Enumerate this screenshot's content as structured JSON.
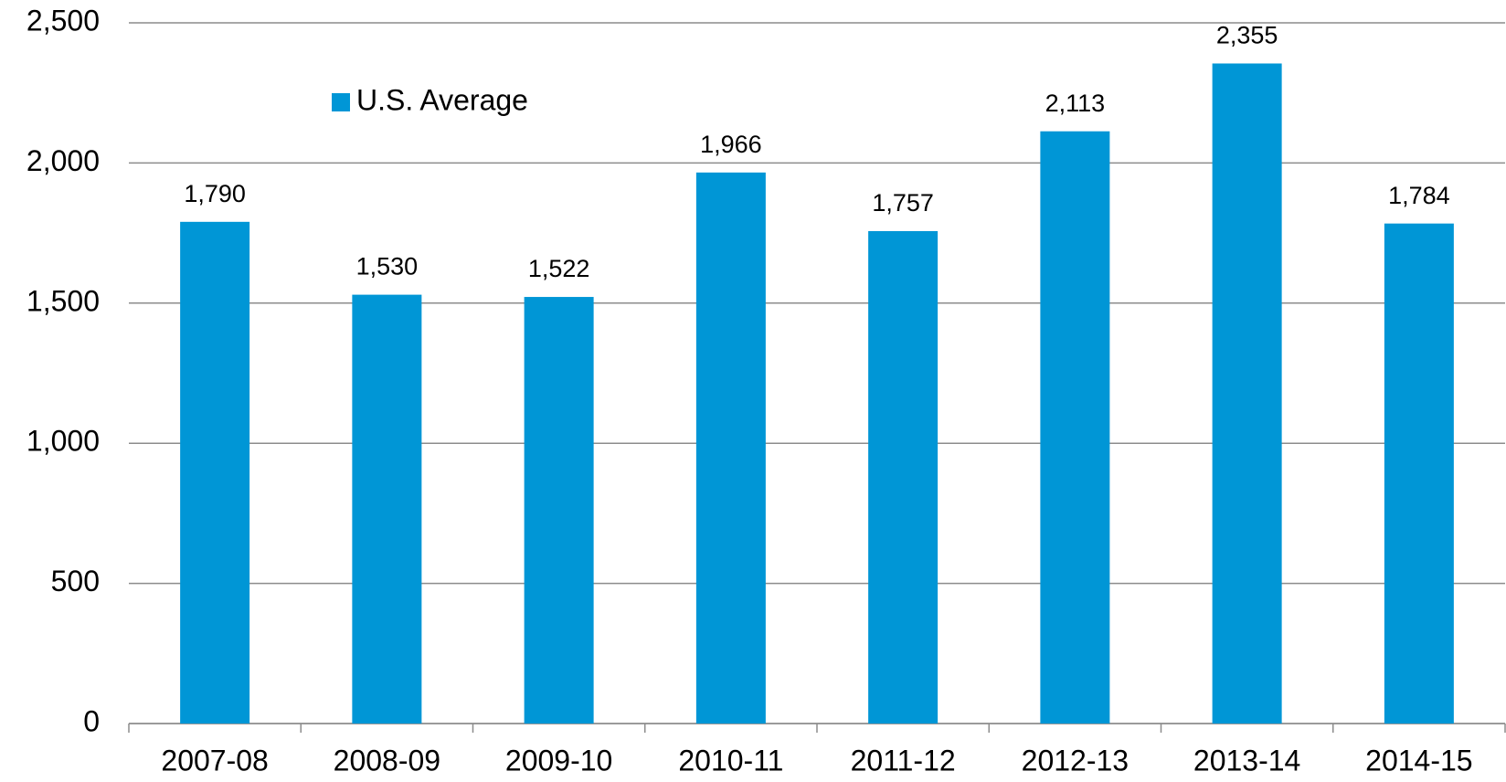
{
  "chart_data": {
    "type": "bar",
    "categories": [
      "2007-08",
      "2008-09",
      "2009-10",
      "2010-11",
      "2011-12",
      "2012-13",
      "2013-14",
      "2014-15"
    ],
    "series": [
      {
        "name": "U.S. Average",
        "color": "#0096d6",
        "values": [
          1790,
          1530,
          1522,
          1966,
          1757,
          2113,
          2355,
          1784
        ],
        "value_labels": [
          "1,790",
          "1,530",
          "1,522",
          "1,966",
          "1,757",
          "2,113",
          "2,355",
          "1,784"
        ]
      }
    ],
    "ylim": [
      0,
      2500
    ],
    "yticks": [
      0,
      500,
      {
        "value": 1000,
        "label": "1,000"
      },
      {
        "value": 1500,
        "label": "1,500"
      },
      {
        "value": 2000,
        "label": "2,000"
      },
      {
        "value": 2500,
        "label": "2,500"
      }
    ],
    "grid": true,
    "legend": "top-left"
  }
}
